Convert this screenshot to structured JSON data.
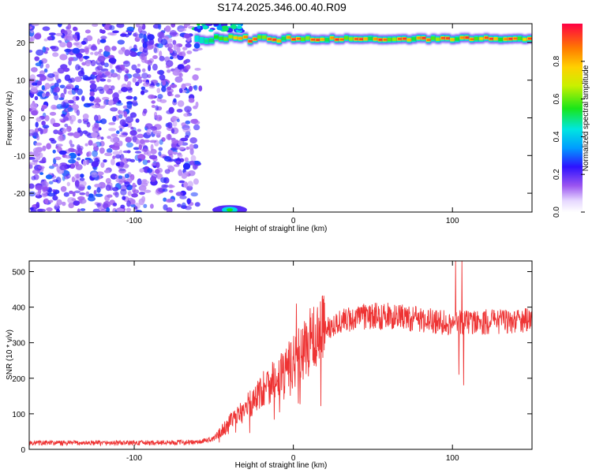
{
  "title": "S174.2025.346.00.40.R09",
  "chart_data": [
    {
      "type": "heatmap",
      "name": "spectrogram",
      "xlabel": "Height of straight line (km)",
      "ylabel": "Frequency (Hz)",
      "xlim": [
        -166,
        150
      ],
      "ylim": [
        -25,
        25
      ],
      "xticks": [
        -100,
        0,
        100
      ],
      "yticks": [
        -20,
        -10,
        0,
        10,
        20
      ],
      "colorbar": {
        "label": "Normalized spectral amplitude",
        "range": [
          0,
          1
        ],
        "ticks": [
          0.0,
          0.2,
          0.4,
          0.6,
          0.8
        ]
      },
      "signal_band": {
        "frequency_hz": 21,
        "x_start_km": -62,
        "x_end_km": 150,
        "peak_amplitude": 0.95
      },
      "noise_region": {
        "x_start_km": -166,
        "x_end_km": -60,
        "amplitude_range": [
          0.1,
          0.3
        ]
      },
      "low_frequency_blob": {
        "x_km": -40,
        "frequency_hz": -24
      }
    },
    {
      "type": "line",
      "name": "snr",
      "xlabel": "Height of straight line (km)",
      "ylabel": "SNR (10 * v/v)",
      "xlim": [
        -166,
        150
      ],
      "ylim": [
        0,
        530
      ],
      "xticks": [
        -100,
        0,
        100
      ],
      "yticks": [
        0,
        100,
        200,
        300,
        400,
        500
      ],
      "series": [
        {
          "name": "SNR",
          "color": "#ee3333",
          "trend_x": [
            -166,
            -100,
            -60,
            -50,
            -40,
            -30,
            -20,
            -10,
            0,
            10,
            20,
            30,
            40,
            50,
            60,
            70,
            80,
            90,
            100,
            110,
            120,
            130,
            140,
            150
          ],
          "trend_y": [
            18,
            18,
            20,
            30,
            75,
            115,
            165,
            210,
            245,
            300,
            340,
            360,
            370,
            375,
            375,
            370,
            365,
            360,
            355,
            360,
            358,
            360,
            362,
            360
          ],
          "spikes": [
            {
              "x": 2,
              "y": 410
            },
            {
              "x": 102,
              "y": 530
            },
            {
              "x": 106,
              "y": 530
            },
            {
              "x": 107,
              "y": 180
            },
            {
              "x": 104,
              "y": 210
            }
          ]
        }
      ]
    }
  ]
}
